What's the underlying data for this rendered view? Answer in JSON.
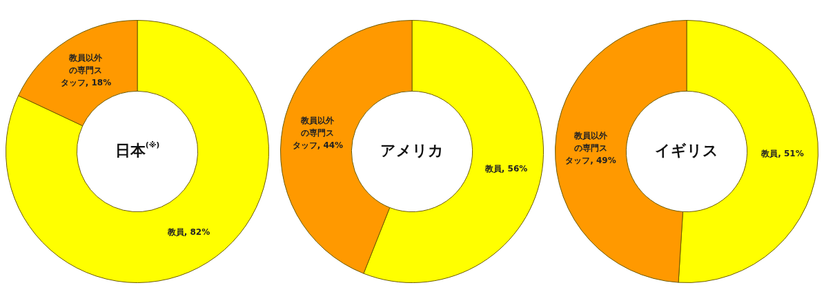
{
  "chart_data": [
    {
      "type": "donut",
      "title": "日本$^{(※)}$",
      "categories": [
        "教員",
        "教員以外の専門スタッフ"
      ],
      "values": [
        82,
        18
      ],
      "colors": [
        "#ffff00",
        "#ff9900"
      ],
      "value_labels": [
        ", 82%",
        ", 18%"
      ],
      "legend": false
    },
    {
      "type": "donut",
      "title": "アメリカ",
      "categories": [
        "教員",
        "教員以外の専門スタッフ"
      ],
      "values": [
        56,
        44
      ],
      "colors": [
        "#ffff00",
        "#ff9900"
      ],
      "value_labels": [
        ", 56%",
        ", 44%"
      ],
      "legend": false
    },
    {
      "type": "donut",
      "title": "イギリス",
      "categories": [
        "教員",
        "教員以外の専門スタッフ"
      ],
      "values": [
        51,
        49
      ],
      "colors": [
        "#ffff00",
        "#ff9900"
      ],
      "value_labels": [
        ", 51%",
        ", 49%"
      ],
      "legend": false
    }
  ]
}
